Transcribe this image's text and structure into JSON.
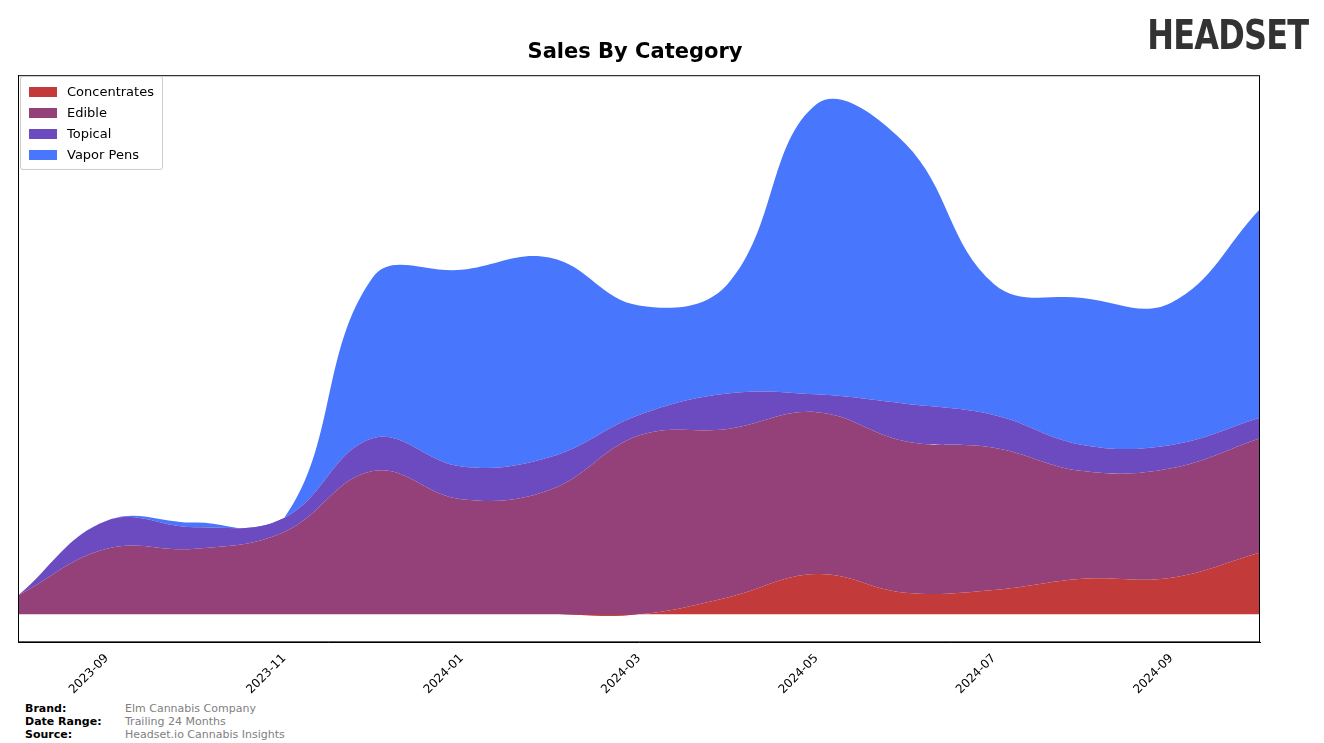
{
  "chart_data": {
    "type": "area",
    "title": "Sales By Category",
    "stacked": true,
    "legend": "upper left",
    "grid": false,
    "tick_labels": "x",
    "categories": [
      null,
      "2023-09",
      null,
      "2023-11",
      null,
      "2024-01",
      null,
      "2024-03",
      null,
      "2024-05",
      null,
      "2024-07",
      null,
      "2024-09",
      null
    ],
    "ylim": [
      -3,
      57.6
    ],
    "series": [
      {
        "name": "Concentrates",
        "color": "#c23a3a",
        "values": [
          0,
          0,
          0,
          0,
          0,
          0,
          0,
          0,
          1.8,
          4.3,
          2.3,
          2.6,
          3.8,
          3.9,
          6.6
        ]
      },
      {
        "name": "Edible",
        "color": "#944079",
        "values": [
          2.0,
          7.0,
          7.0,
          8.8,
          15.3,
          12.3,
          13.3,
          19.1,
          18.0,
          17.3,
          16.2,
          15.2,
          11.5,
          11.7,
          12.2
        ]
      },
      {
        "name": "Topical",
        "color": "#6b4bbf",
        "values": [
          0,
          3.0,
          2.3,
          1.5,
          3.5,
          3.5,
          3.5,
          2.2,
          3.8,
          1.9,
          4.0,
          3.5,
          2.8,
          2.5,
          2.2
        ]
      },
      {
        "name": "Vapor Pens",
        "color": "#4876fc",
        "values": [
          0,
          0,
          0.5,
          0,
          17.2,
          21.0,
          21.3,
          11.7,
          11.7,
          31.0,
          27.8,
          14.0,
          15.7,
          15.2,
          22.3
        ]
      }
    ],
    "logo": "HEADSET",
    "footer": [
      {
        "label": "Brand:",
        "value": "Elm Cannabis Company"
      },
      {
        "label": "Date Range:",
        "value": "Trailing 24 Months"
      },
      {
        "label": "Source:",
        "value": "Headset.io Cannabis Insights"
      }
    ]
  }
}
